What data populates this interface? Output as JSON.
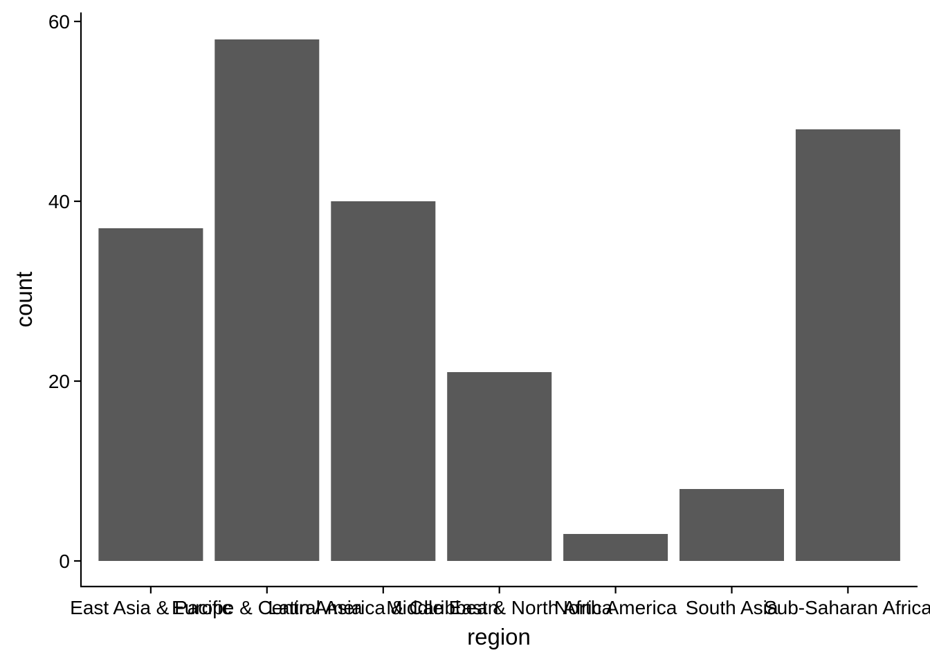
{
  "chart_data": {
    "type": "bar",
    "categories": [
      "East Asia & Pacific",
      "Europe & Central Asia",
      "Latin America & Caribbean",
      "Middle East & North Africa",
      "North America",
      "South Asia",
      "Sub-Saharan Africa"
    ],
    "values": [
      37,
      58,
      40,
      21,
      3,
      8,
      48
    ],
    "xlabel": "region",
    "ylabel": "count",
    "ylim": [
      0,
      60
    ],
    "yticks": [
      0,
      20,
      40,
      60
    ],
    "grid": false,
    "bar_color": "#595959"
  }
}
